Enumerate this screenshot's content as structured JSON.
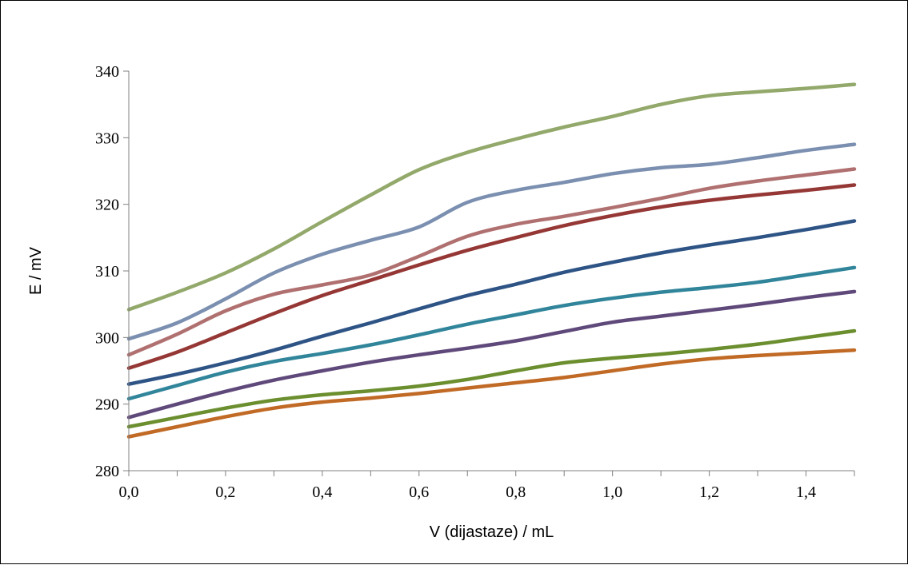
{
  "chart_data": {
    "type": "line",
    "title": "",
    "xlabel": "V (dijastaze) / mL",
    "ylabel": "E / mV",
    "xlim": [
      0.0,
      1.5
    ],
    "ylim": [
      280,
      340
    ],
    "grid": false,
    "legend": "none",
    "x": [
      0.0,
      0.1,
      0.2,
      0.3,
      0.4,
      0.5,
      0.6,
      0.7,
      0.8,
      0.9,
      1.0,
      1.1,
      1.2,
      1.3,
      1.4,
      1.5
    ],
    "x_tick_labels": [
      "0,0",
      "0,2",
      "0,4",
      "0,6",
      "0,8",
      "1,0",
      "1,2",
      "1,4"
    ],
    "y_tick_labels": [
      "280",
      "290",
      "300",
      "310",
      "320",
      "330",
      "340"
    ],
    "series": [
      {
        "color": "#93a96b",
        "values": [
          304.2,
          306.8,
          309.7,
          313.3,
          317.4,
          321.4,
          325.2,
          327.8,
          329.8,
          331.6,
          333.2,
          335.0,
          336.3,
          336.9,
          337.4,
          338.0
        ]
      },
      {
        "color": "#7b8fb0",
        "values": [
          299.8,
          302.2,
          305.8,
          309.7,
          312.5,
          314.6,
          316.6,
          320.3,
          322.1,
          323.3,
          324.6,
          325.5,
          326.0,
          327.0,
          328.1,
          329.0
        ]
      },
      {
        "color": "#b07070",
        "values": [
          297.4,
          300.5,
          304.0,
          306.5,
          307.9,
          309.4,
          312.2,
          315.2,
          317.0,
          318.2,
          319.5,
          320.9,
          322.4,
          323.5,
          324.4,
          325.3
        ]
      },
      {
        "color": "#953735",
        "values": [
          295.4,
          297.8,
          300.7,
          303.6,
          306.3,
          308.6,
          310.9,
          313.1,
          315.0,
          316.8,
          318.3,
          319.6,
          320.6,
          321.4,
          322.1,
          322.9
        ]
      },
      {
        "color": "#2e5486",
        "values": [
          293.0,
          294.5,
          296.2,
          298.1,
          300.2,
          302.2,
          304.3,
          306.3,
          308.0,
          309.8,
          311.3,
          312.7,
          313.9,
          315.0,
          316.2,
          317.5
        ]
      },
      {
        "color": "#31859b",
        "values": [
          290.8,
          292.8,
          294.8,
          296.4,
          297.6,
          298.9,
          300.4,
          302.0,
          303.4,
          304.8,
          305.9,
          306.8,
          307.5,
          308.3,
          309.4,
          310.5
        ]
      },
      {
        "color": "#5f497a",
        "values": [
          288.0,
          290.0,
          291.9,
          293.6,
          295.0,
          296.3,
          297.4,
          298.4,
          299.5,
          300.9,
          302.3,
          303.2,
          304.1,
          305.0,
          306.0,
          306.9
        ]
      },
      {
        "color": "#6b8e2e",
        "values": [
          286.6,
          288.0,
          289.4,
          290.6,
          291.4,
          292.0,
          292.7,
          293.7,
          295.0,
          296.2,
          296.9,
          297.5,
          298.2,
          299.0,
          300.0,
          301.0
        ]
      },
      {
        "color": "#c16a26",
        "values": [
          285.1,
          286.6,
          288.1,
          289.4,
          290.3,
          290.9,
          291.6,
          292.4,
          293.2,
          294.0,
          295.0,
          296.0,
          296.8,
          297.3,
          297.7,
          298.1
        ]
      }
    ]
  }
}
